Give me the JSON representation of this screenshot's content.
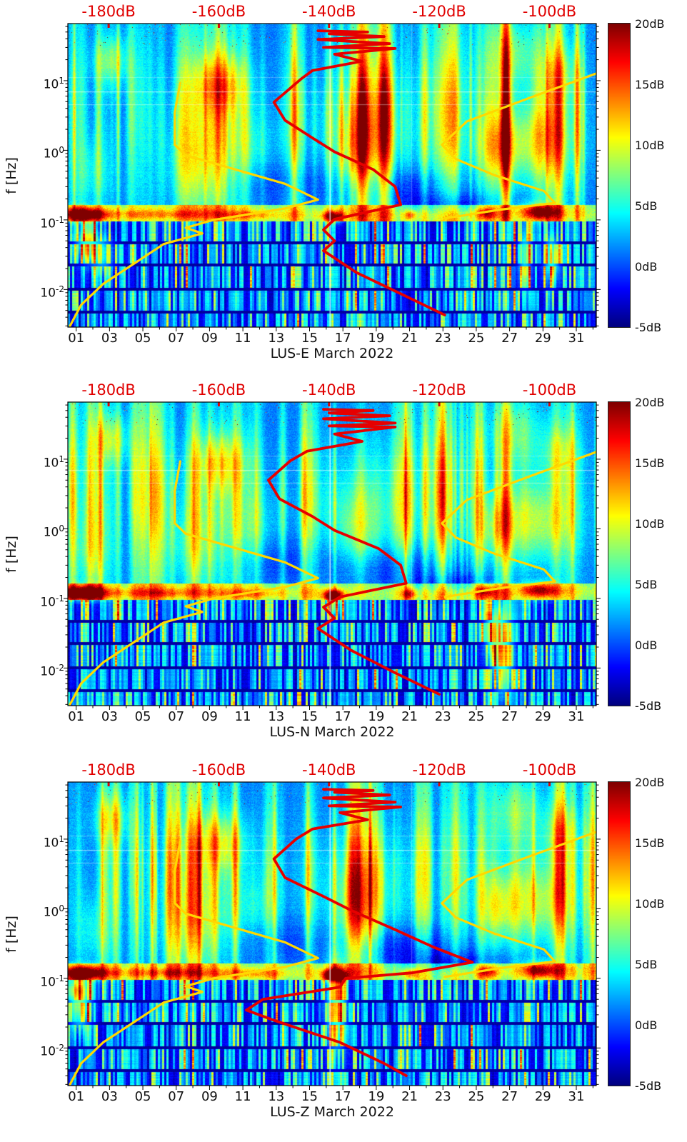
{
  "page": {
    "background": "#ffffff"
  },
  "chart_data": {
    "type": "heatmap",
    "title": "",
    "description": "Three stacked spectrogram panels of seismic power spectral density (dB, jet colormap) versus frequency (log scale) for station LUS components E, N and Z during March 2022. Yellow noise-model curves and a red observed-PSD curve are overplotted against the red dB axis shown along the top of each panel.",
    "shared": {
      "top_axis": {
        "unit": "dB",
        "color": "#e00000",
        "labels": [
          "-180dB",
          "-160dB",
          "-140dB",
          "-120dB",
          "-100dB"
        ],
        "values": [
          -180,
          -160,
          -140,
          -120,
          -100
        ],
        "range": [
          -187.4,
          -91.5
        ]
      },
      "y_axis": {
        "label": "f [Hz]",
        "scale": "log",
        "tick_labels": [
          "10^1",
          "10^0",
          "10^-1",
          "10^-2"
        ],
        "tick_exponents": [
          1,
          0,
          -1,
          -2
        ],
        "range_hz": [
          0.0029,
          66
        ]
      },
      "x_axis": {
        "tick_labels": [
          "01",
          "03",
          "05",
          "07",
          "09",
          "11",
          "13",
          "15",
          "17",
          "19",
          "21",
          "23",
          "25",
          "27",
          "29",
          "31"
        ],
        "tick_days": [
          1,
          3,
          5,
          7,
          9,
          11,
          13,
          15,
          17,
          19,
          21,
          23,
          25,
          27,
          29,
          31
        ],
        "n_days": 32
      },
      "colorbar": {
        "tick_labels": [
          "20dB",
          "15dB",
          "10dB",
          "5dB",
          "0dB",
          "-5dB"
        ],
        "tick_values": [
          20,
          15,
          10,
          5,
          0,
          -5
        ],
        "range": [
          -5,
          20
        ],
        "colormap": "jet"
      },
      "model_curves": {
        "format": "[dB, Hz]",
        "yellow_low": [
          [
            -187,
            0.003
          ],
          [
            -185,
            0.006
          ],
          [
            -181,
            0.012
          ],
          [
            -170,
            0.045
          ],
          [
            -163,
            0.064
          ],
          [
            -166,
            0.077
          ],
          [
            -161,
            0.1
          ],
          [
            -148,
            0.146
          ],
          [
            -142,
            0.195
          ],
          [
            -148,
            0.33
          ],
          [
            -157,
            0.53
          ],
          [
            -166,
            0.85
          ],
          [
            -168,
            1.2
          ],
          [
            -168,
            3.5
          ],
          [
            -167,
            9.3
          ]
        ],
        "yellow_high": [
          [
            -119,
            0.105
          ],
          [
            -109,
            0.14
          ],
          [
            -99,
            0.175
          ],
          [
            -101,
            0.26
          ],
          [
            -110,
            0.44
          ],
          [
            -117,
            0.75
          ],
          [
            -119.5,
            1.2
          ],
          [
            -115,
            2.6
          ],
          [
            -103,
            5.9
          ],
          [
            -91.6,
            12.6
          ]
        ]
      }
    },
    "panels": [
      {
        "id": "LUS-E",
        "xlabel": "LUS-E March 2022",
        "red_psd": [
          [
            -142,
            52
          ],
          [
            -133,
            50
          ],
          [
            -140,
            47
          ],
          [
            -130,
            43
          ],
          [
            -142,
            39
          ],
          [
            -129,
            34
          ],
          [
            -141,
            30
          ],
          [
            -128,
            29
          ],
          [
            -139,
            24
          ],
          [
            -134,
            19
          ],
          [
            -143,
            14
          ],
          [
            -145,
            10.7
          ],
          [
            -150,
            4.9
          ],
          [
            -148,
            2.7
          ],
          [
            -143,
            1.5
          ],
          [
            -139,
            0.95
          ],
          [
            -132,
            0.53
          ],
          [
            -128,
            0.3
          ],
          [
            -127,
            0.165
          ],
          [
            -139,
            0.102
          ],
          [
            -141,
            0.072
          ],
          [
            -139,
            0.05
          ],
          [
            -141,
            0.036
          ],
          [
            -135,
            0.0175
          ],
          [
            -127,
            0.0087
          ],
          [
            -119,
            0.0043
          ]
        ]
      },
      {
        "id": "LUS-N",
        "xlabel": "LUS-N March 2022",
        "red_psd": [
          [
            -141,
            52
          ],
          [
            -132,
            50
          ],
          [
            -140,
            46
          ],
          [
            -129,
            42
          ],
          [
            -141,
            38
          ],
          [
            -128,
            33
          ],
          [
            -140,
            30
          ],
          [
            -128,
            29
          ],
          [
            -139,
            23
          ],
          [
            -134,
            18
          ],
          [
            -144,
            13
          ],
          [
            -147,
            9.5
          ],
          [
            -151,
            5
          ],
          [
            -149,
            2.7
          ],
          [
            -143,
            1.5
          ],
          [
            -139,
            0.95
          ],
          [
            -131,
            0.52
          ],
          [
            -127,
            0.3
          ],
          [
            -126,
            0.165
          ],
          [
            -138,
            0.105
          ],
          [
            -141,
            0.075
          ],
          [
            -139,
            0.052
          ],
          [
            -142,
            0.037
          ],
          [
            -136,
            0.018
          ],
          [
            -128,
            0.0085
          ],
          [
            -120,
            0.0042
          ]
        ]
      },
      {
        "id": "LUS-Z",
        "xlabel": "LUS-Z March 2022",
        "red_psd": [
          [
            -141,
            52
          ],
          [
            -132,
            50
          ],
          [
            -139,
            47
          ],
          [
            -129,
            43
          ],
          [
            -141,
            39
          ],
          [
            -128,
            34
          ],
          [
            -140,
            30
          ],
          [
            -127,
            29
          ],
          [
            -138,
            24
          ],
          [
            -133,
            19
          ],
          [
            -143,
            14
          ],
          [
            -146,
            10
          ],
          [
            -150,
            5.2
          ],
          [
            -148,
            2.8
          ],
          [
            -141,
            1.5
          ],
          [
            -136,
            0.95
          ],
          [
            -128,
            0.5
          ],
          [
            -121,
            0.28
          ],
          [
            -114,
            0.17
          ],
          [
            -125,
            0.12
          ],
          [
            -137,
            0.1
          ],
          [
            -138,
            0.075
          ],
          [
            -152,
            0.05
          ],
          [
            -155,
            0.035
          ],
          [
            -150,
            0.025
          ],
          [
            -138,
            0.012
          ],
          [
            -130,
            0.006
          ],
          [
            -126,
            0.004
          ]
        ]
      }
    ],
    "overlay_colors": {
      "model_curve": "#ffd800",
      "observed_curve": "#e60000"
    }
  }
}
